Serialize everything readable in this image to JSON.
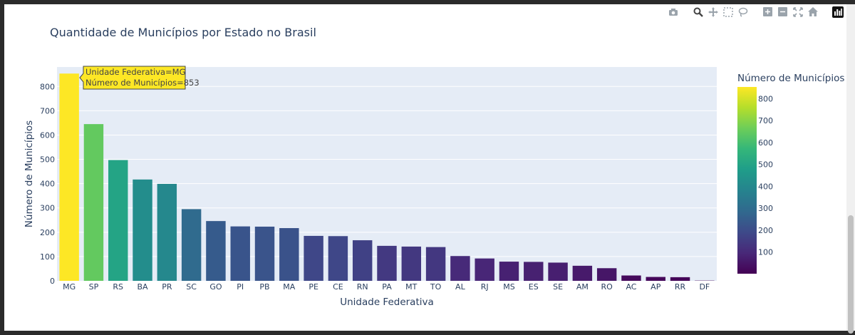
{
  "modebar": {
    "icons": [
      "camera-icon",
      "zoom-icon",
      "pan-icon",
      "box-select-icon",
      "lasso-icon",
      "zoom-in-icon",
      "zoom-out-icon",
      "autoscale-icon",
      "home-icon",
      "plotly-logo-icon"
    ]
  },
  "colors": {
    "plot_bg": "#e5ecf6",
    "text": "#2a3f5f",
    "tooltip_bg": "#fde725",
    "tooltip_border": "#444444"
  },
  "tooltip": {
    "line1": "Unidade Federativa=MG",
    "line2": "Número de Municípios=853"
  },
  "chart_data": {
    "type": "bar",
    "title": "Quantidade de Municípios por Estado no Brasil",
    "xlabel": "Unidade Federativa",
    "ylabel": "Número de Municípios",
    "categories": [
      "MG",
      "SP",
      "RS",
      "BA",
      "PR",
      "SC",
      "GO",
      "PI",
      "PB",
      "MA",
      "PE",
      "CE",
      "RN",
      "PA",
      "MT",
      "TO",
      "AL",
      "RJ",
      "MS",
      "ES",
      "SE",
      "AM",
      "RO",
      "AC",
      "AP",
      "RR",
      "DF"
    ],
    "values": [
      853,
      645,
      497,
      417,
      399,
      295,
      246,
      224,
      223,
      217,
      185,
      184,
      167,
      144,
      141,
      139,
      102,
      92,
      79,
      78,
      75,
      62,
      52,
      22,
      16,
      15,
      1
    ],
    "ylim": [
      0,
      880
    ],
    "yticks": [
      0,
      100,
      200,
      300,
      400,
      500,
      600,
      700,
      800
    ],
    "colorbar": {
      "title": "Número de Municípios",
      "ticks": [
        100,
        200,
        300,
        400,
        500,
        600,
        700,
        800
      ],
      "min": 1,
      "max": 853
    },
    "colorscale": "Viridis",
    "grid": true
  }
}
